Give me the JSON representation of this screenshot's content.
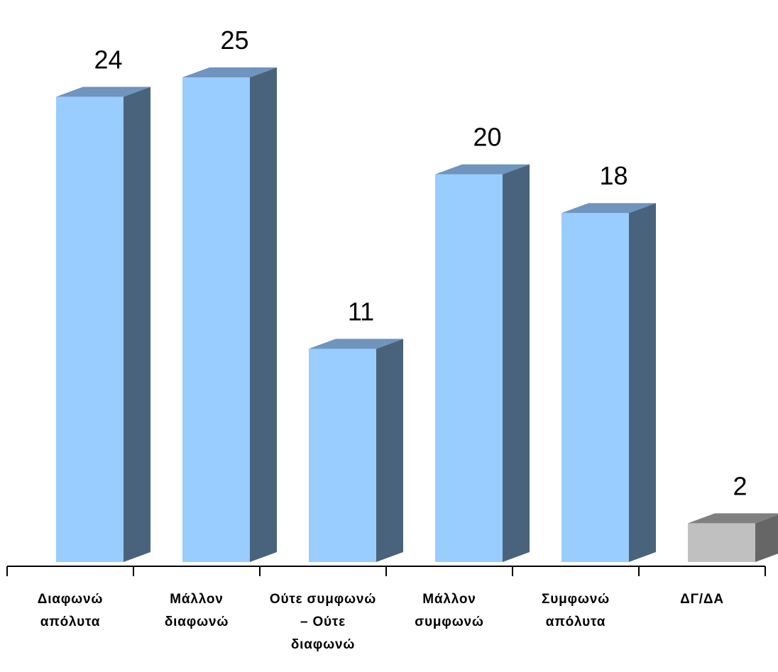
{
  "chart_data": {
    "type": "bar",
    "style": "3d-column",
    "categories": [
      [
        "Διαφωνώ",
        "απόλυτα"
      ],
      [
        "Μάλλον",
        "διαφωνώ"
      ],
      [
        "Ούτε συμφωνώ",
        "– Ούτε",
        "διαφωνώ"
      ],
      [
        "Μάλλον",
        "συμφωνώ"
      ],
      [
        "Συμφωνώ",
        "απόλυτα"
      ],
      [
        "ΔΓ/ΔΑ"
      ]
    ],
    "values": [
      24,
      25,
      11,
      20,
      18,
      2
    ],
    "value_labels": [
      "24",
      "25",
      "11",
      "20",
      "18",
      "2"
    ],
    "ylim": [
      0,
      25
    ],
    "grid": false,
    "legend": "none",
    "colors": {
      "bar_front": "#99ccff",
      "bar_side": "#4a637d",
      "bar_top": "#6f94be",
      "dk_front": "#c0c0c0",
      "dk_side": "#666666",
      "dk_top": "#808080",
      "axis": "#000000"
    },
    "highlight_index": 5
  }
}
